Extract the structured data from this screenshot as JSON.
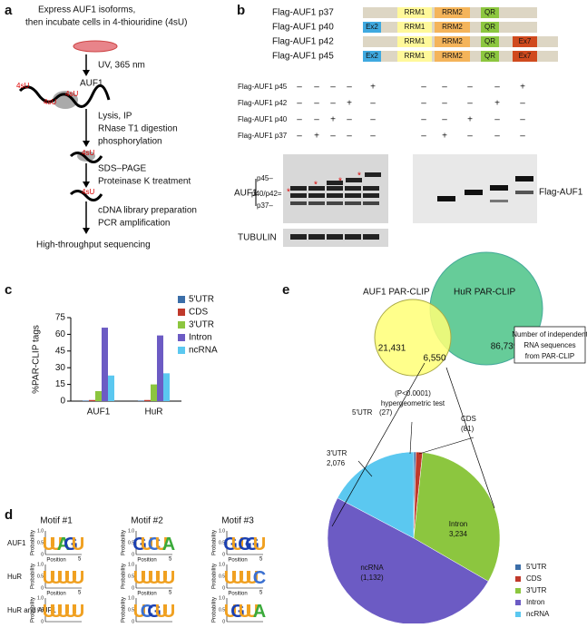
{
  "panel_labels": [
    "a",
    "b",
    "c",
    "d",
    "e"
  ],
  "panel_a": {
    "steps": [
      "Express AUF1 isoforms,",
      "then incubate cells in 4-thiouridine (4sU)",
      "UV, 365 nm",
      "AUF1",
      "Lysis, IP",
      "RNase T1 digestion",
      "phosphorylation",
      "SDS–PAGE",
      "Proteinase K treatment",
      "cDNA library preparation",
      "PCR amplification",
      "High-throughput sequencing"
    ],
    "label_4su": "4sU"
  },
  "panel_b": {
    "constructs": [
      {
        "name": "Flag-AUF1 p37",
        "domains": [
          "RRM1",
          "RRM2",
          "QR"
        ]
      },
      {
        "name": "Flag-AUF1 p40",
        "domains": [
          "Ex2",
          "RRM1",
          "RRM2",
          "QR"
        ]
      },
      {
        "name": "Flag-AUF1 p42",
        "domains": [
          "RRM1",
          "RRM2",
          "QR",
          "Ex7"
        ]
      },
      {
        "name": "Flag-AUF1 p45",
        "domains": [
          "Ex2",
          "RRM1",
          "RRM2",
          "QR",
          "Ex7"
        ]
      }
    ],
    "blot_rows": [
      {
        "name": "Flag-AUF1 p45",
        "signs": [
          "–",
          "–",
          "–",
          "–",
          "+",
          "–",
          "–",
          "–",
          "–",
          "+"
        ]
      },
      {
        "name": "Flag-AUF1 p42",
        "signs": [
          "–",
          "–",
          "–",
          "+",
          "–",
          "–",
          "–",
          "–",
          "+",
          "–"
        ]
      },
      {
        "name": "Flag-AUF1 p40",
        "signs": [
          "–",
          "–",
          "+",
          "–",
          "–",
          "–",
          "–",
          "+",
          "–",
          "–"
        ]
      },
      {
        "name": "Flag-AUF1 p37",
        "signs": [
          "–",
          "+",
          "–",
          "–",
          "–",
          "–",
          "+",
          "–",
          "–",
          "–"
        ]
      }
    ],
    "blot_labels": {
      "auf1": "AUF1",
      "p45": "p45–",
      "p40_p42": "p40/p42=",
      "p37": "p37–",
      "tubulin": "TUBULIN",
      "flag": "Flag-AUF1",
      "asterisk": "*"
    }
  },
  "chart_data": [
    {
      "type": "bar",
      "ylabel": "%PAR-CLIP tags",
      "categories": [
        "AUF1",
        "HuR"
      ],
      "series": [
        {
          "name": "5′UTR",
          "color": "#3b6ea8",
          "values": [
            0.5,
            0.5
          ]
        },
        {
          "name": "CDS",
          "color": "#c0392b",
          "values": [
            1,
            1
          ]
        },
        {
          "name": "3′UTR",
          "color": "#8cc63f",
          "values": [
            9,
            15
          ]
        },
        {
          "name": "Intron",
          "color": "#6c5bc4",
          "values": [
            66,
            59
          ]
        },
        {
          "name": "ncRNA",
          "color": "#5bc8f0",
          "values": [
            23,
            25
          ]
        }
      ],
      "ylim": [
        0,
        75
      ],
      "yticks": [
        0,
        15,
        30,
        45,
        60,
        75
      ],
      "legend": "upper-right"
    },
    {
      "type": "pie",
      "categories": [
        "5′UTR",
        "CDS",
        "3′UTR",
        "Intron",
        "ncRNA"
      ],
      "values": [
        27,
        81,
        2076,
        3234,
        1132
      ],
      "value_labels": [
        "(27)",
        "(81)",
        "2,076",
        "3,234",
        "(1,132)"
      ],
      "colors": [
        "#3b6ea8",
        "#c0392b",
        "#8cc63f",
        "#6c5bc4",
        "#5bc8f0"
      ],
      "legend": "lower-right"
    }
  ],
  "panel_d": {
    "motifs": [
      "Motif #1",
      "Motif #2",
      "Motif #3"
    ],
    "rows": [
      "AUF1",
      "HuR",
      "HuR and AUF1"
    ],
    "y_ticks": [
      "1.0",
      "0.5",
      "0"
    ],
    "y_label": "Probability",
    "x_label": "Position",
    "x_tick": "5",
    "logos": [
      [
        "UUAGU",
        "GUCUA",
        "GUGGU"
      ],
      [
        "UUUUU",
        "UUUUU",
        "UUUUC"
      ],
      [
        "UUUUU",
        "UCGUU",
        "UGUUA"
      ]
    ]
  },
  "panel_e": {
    "auf1_title": "AUF1 PAR-CLIP",
    "hur_title": "HuR PAR-CLIP",
    "auf1_only": "21,431",
    "overlap": "6,550",
    "hur_only": "86,739",
    "box_lines": [
      "Number of independent",
      "RNA sequences",
      "from PAR-CLIP"
    ],
    "test_lines": [
      "(P<0.0001)",
      "hypergeometric test"
    ]
  }
}
